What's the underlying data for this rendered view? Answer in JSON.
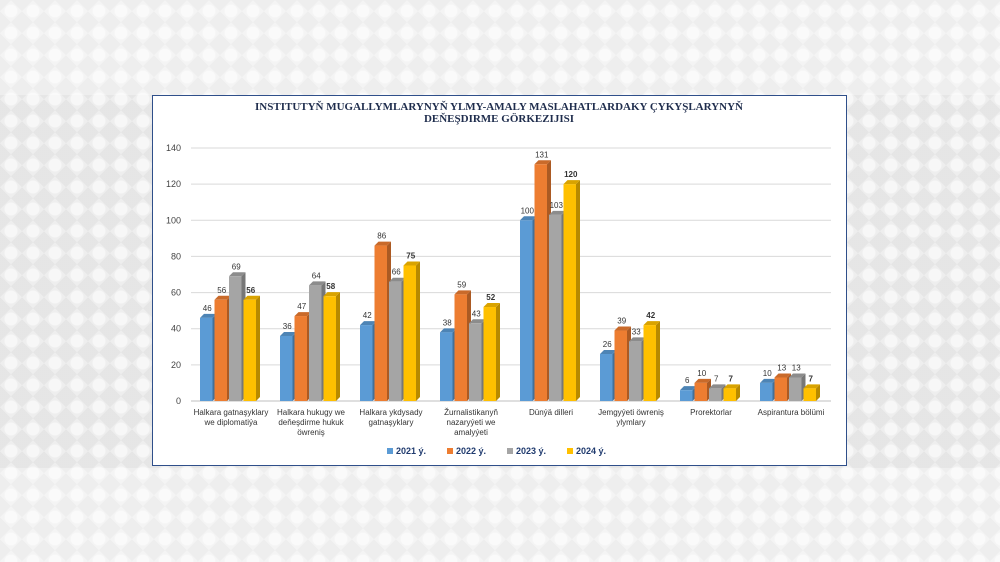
{
  "chart_data": {
    "type": "bar",
    "title_lines": [
      "INSTITUTYŇ MUGALLYMLARYNYŇ YLMY-AMALY MASLAHATLARDAKY ÇYKYŞLARYNYŇ",
      "DEŇEŞDIRME GÖRKEZIJISI"
    ],
    "categories": [
      [
        "Halkara gatnaşyklary",
        "we diplomatiýa"
      ],
      [
        "Halkara hukugy we",
        "deňeşdirme hukuk",
        "öwreniş"
      ],
      [
        "Halkara ykdysady",
        "gatnaşyklary"
      ],
      [
        "Žurnalistikanyň",
        "nazaryýeti we",
        "amalyýeti"
      ],
      [
        "Dünýä dilleri"
      ],
      [
        "Jemgyýeti öwreniş",
        "ylymlary"
      ],
      [
        "Prorektorlar"
      ],
      [
        "Aspirantura bölümi"
      ]
    ],
    "series": [
      {
        "name": "2021 ý.",
        "color": "#5b9bd5",
        "values": [
          46,
          36,
          42,
          38,
          100,
          26,
          6,
          10
        ]
      },
      {
        "name": "2022 ý.",
        "color": "#ed7d31",
        "values": [
          56,
          47,
          86,
          59,
          131,
          39,
          10,
          13
        ]
      },
      {
        "name": "2023 ý.",
        "color": "#a5a5a5",
        "values": [
          69,
          64,
          66,
          43,
          103,
          33,
          7,
          13
        ]
      },
      {
        "name": "2024 ý.",
        "color": "#ffc000",
        "values": [
          56,
          58,
          75,
          52,
          120,
          42,
          7,
          7
        ]
      }
    ],
    "ylim": [
      0,
      140
    ],
    "yticks": [
      0,
      20,
      40,
      60,
      80,
      100,
      120,
      140
    ],
    "grid": true,
    "legend_position": "bottom"
  }
}
